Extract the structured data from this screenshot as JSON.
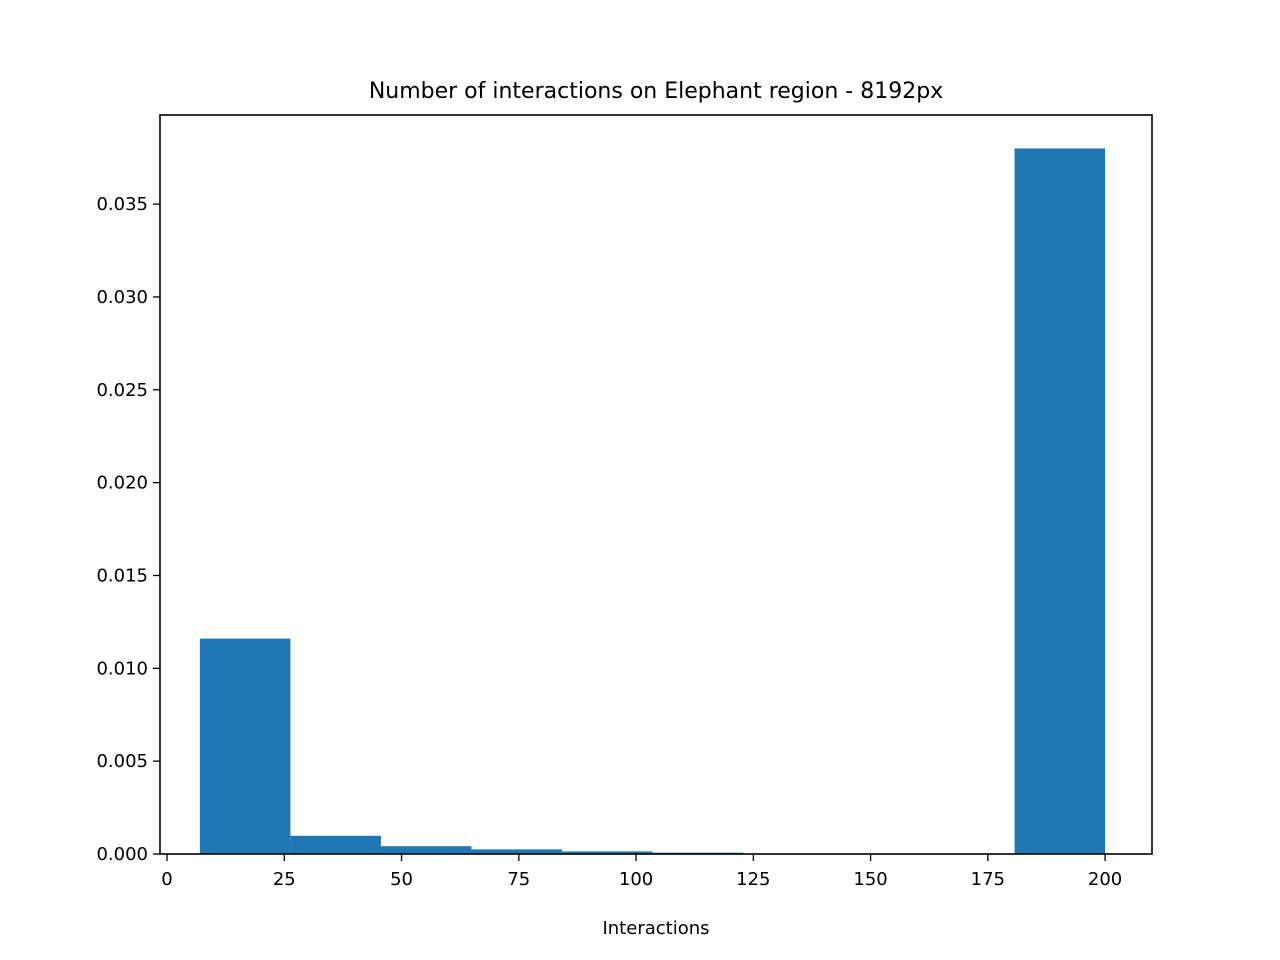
{
  "chart_data": {
    "type": "bar",
    "title": "Number of interactions on Elephant region - 8192px",
    "xlabel": "Interactions",
    "ylabel": "",
    "xlim": [
      -1.5,
      210
    ],
    "ylim": [
      0,
      0.0398
    ],
    "x_ticks": [
      0,
      25,
      50,
      75,
      100,
      125,
      150,
      175,
      200
    ],
    "x_tick_labels": [
      "0",
      "25",
      "50",
      "75",
      "100",
      "125",
      "150",
      "175",
      "200"
    ],
    "y_ticks": [
      0,
      0.005,
      0.01,
      0.015,
      0.02,
      0.025,
      0.03,
      0.035
    ],
    "y_tick_labels": [
      "0.000",
      "0.005",
      "0.010",
      "0.015",
      "0.020",
      "0.025",
      "0.030",
      "0.035"
    ],
    "bins": [
      {
        "x0": 7.0,
        "x1": 26.3,
        "value": 0.0116
      },
      {
        "x0": 26.3,
        "x1": 45.6,
        "value": 0.00098
      },
      {
        "x0": 45.6,
        "x1": 64.9,
        "value": 0.00042
      },
      {
        "x0": 64.9,
        "x1": 84.2,
        "value": 0.00025
      },
      {
        "x0": 84.2,
        "x1": 103.5,
        "value": 0.00014
      },
      {
        "x0": 103.5,
        "x1": 122.8,
        "value": 7e-05
      },
      {
        "x0": 122.8,
        "x1": 142.1,
        "value": 2e-05
      },
      {
        "x0": 142.1,
        "x1": 161.4,
        "value": 1e-05
      },
      {
        "x0": 161.4,
        "x1": 180.7,
        "value": 0.0
      },
      {
        "x0": 180.7,
        "x1": 200.0,
        "value": 0.038
      }
    ],
    "bar_color": "#1f77b4",
    "grid": false,
    "legend": "none"
  }
}
